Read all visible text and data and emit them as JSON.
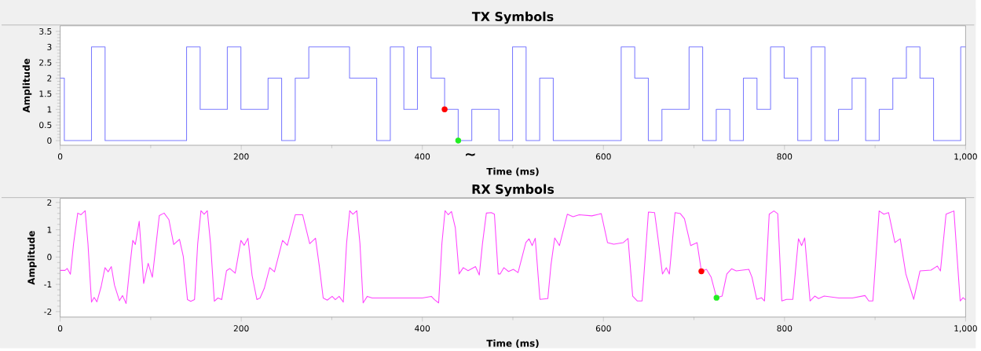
{
  "chart_data": [
    {
      "type": "step",
      "title": "TX Symbols",
      "xlabel": "Time (ms)",
      "ylabel": "Amplitude",
      "annotations": [
        "~"
      ],
      "xlim": [
        0,
        1000
      ],
      "ylim": [
        -0.15,
        3.68
      ],
      "xticks": [
        0,
        200,
        400,
        600,
        800,
        {
          "value": 1000,
          "label": "1,000"
        }
      ],
      "yticks": [
        0,
        0.5,
        1,
        1.5,
        2,
        2.5,
        3,
        3.5
      ],
      "series": [
        {
          "color": "#7b7bff",
          "x": [
            0,
            4.6,
            34.6,
            49.6,
            139.6,
            154.6,
            184.6,
            199.6,
            229.6,
            244.6,
            259.6,
            274.6,
            319.6,
            349.6,
            364.6,
            379.6,
            394.6,
            409.6,
            424.6,
            439.6,
            454.6,
            484.6,
            499.6,
            514.6,
            529.6,
            544.6,
            619.6,
            634.6,
            649.6,
            664.6,
            694.6,
            709.6,
            724.6,
            739.6,
            754.6,
            769.6,
            784.6,
            799.6,
            814.6,
            829.6,
            844.6,
            859.6,
            874.6,
            889.6,
            904.6,
            919.6,
            934.6,
            949.6,
            964.6,
            994.6,
            1000
          ],
          "values": [
            2,
            0,
            3,
            0,
            3,
            1,
            3,
            1,
            2,
            0,
            2,
            3,
            2,
            0,
            3,
            1,
            3,
            2,
            1,
            0,
            1,
            0,
            3,
            0,
            2,
            0,
            3,
            2,
            0,
            1,
            3,
            0,
            1,
            0,
            2,
            1,
            3,
            2,
            0,
            3,
            0,
            1,
            2,
            0,
            1,
            2,
            3,
            2,
            0,
            3,
            3
          ]
        },
        {
          "type": "scatter",
          "color": "#ff0000",
          "marker": "circle",
          "x": [
            424.6
          ],
          "values": [
            1
          ]
        },
        {
          "type": "scatter",
          "color": "#22ee22",
          "marker": "circle",
          "x": [
            439.6
          ],
          "values": [
            0
          ]
        }
      ]
    },
    {
      "type": "line",
      "title": "RX Symbols",
      "xlabel": "Time (ms)",
      "ylabel": "Amplitude",
      "xlim": [
        0,
        1000
      ],
      "ylim": [
        -2.2,
        2.15
      ],
      "xticks": [
        0,
        200,
        400,
        600,
        800,
        {
          "value": 1000,
          "label": "1,000"
        }
      ],
      "yticks": [
        -2,
        -1,
        0,
        1,
        2
      ],
      "series": [
        {
          "color": "#ff44ff",
          "x": [
            0,
            5.3,
            7.8,
            11.3,
            14.8,
            19.4,
            23,
            27.6,
            30.7,
            34.6,
            37.5,
            40.6,
            45.2,
            49.5,
            53,
            56.5,
            60,
            65.4,
            68.9,
            72.8,
            77,
            80.2,
            83,
            87.3,
            92.2,
            97.2,
            101.8,
            106,
            109.5,
            114.8,
            120.1,
            125.4,
            131.8,
            136,
            140.6,
            144.2,
            148.4,
            151.9,
            155.5,
            159,
            162.5,
            166.1,
            170.3,
            174.2,
            178.4,
            183.7,
            187.3,
            193.3,
            199.6,
            203.2,
            207.4,
            212,
            217.3,
            220.8,
            225.4,
            231.4,
            236.7,
            245.6,
            250.9,
            259.7,
            267.8,
            275.6,
            282,
            286.2,
            290.5,
            295,
            300.4,
            303.9,
            308.1,
            312.7,
            316.3,
            319.8,
            323.3,
            327.6,
            331.1,
            334.6,
            339.2,
            344.5,
            360,
            380,
            400,
            409.9,
            413.4,
            418,
            421.6,
            425.1,
            428.6,
            432.2,
            436.4,
            440.6,
            445.2,
            450.5,
            458.7,
            462.9,
            466.4,
            470.7,
            476.2,
            479.6,
            483.8,
            485.9,
            490,
            495.2,
            500.5,
            505.7,
            514.3,
            517.8,
            521.3,
            524.7,
            529.9,
            538.6,
            542.1,
            546.2,
            551.4,
            560.1,
            566.4,
            573.3,
            587.2,
            597.6,
            604.5,
            611.4,
            622,
            627.2,
            632.3,
            637.5,
            642.7,
            649.7,
            656.5,
            660,
            665.2,
            669.4,
            672.8,
            679.1,
            685,
            689.5,
            696.4,
            703.4,
            708.2,
            713.8,
            719,
            724.9,
            731.1,
            736.3,
            741.5,
            746.7,
            760.6,
            764.1,
            769.3,
            774.5,
            777.9,
            783.1,
            788.3,
            792.5,
            797,
            802.2,
            809.2,
            815.4,
            818.9,
            822.3,
            828.2,
            833.4,
            837.6,
            843.8,
            860,
            875,
            888.9,
            893.1,
            897.6,
            904.5,
            909.7,
            914.9,
            921.9,
            927.8,
            934,
            942.7,
            949.6,
            961.8,
            968.7,
            972.2,
            978.4,
            982.6,
            987.1,
            989.5,
            994,
            997.2,
            1000
          ],
          "values": [
            -0.49,
            -0.49,
            -0.42,
            -0.63,
            0.49,
            1.61,
            1.55,
            1.7,
            0.49,
            -1.65,
            -1.48,
            -1.64,
            -1.09,
            -0.39,
            -0.54,
            -0.35,
            -1.03,
            -1.6,
            -1.41,
            -1.7,
            -0.33,
            0.61,
            0.46,
            1.31,
            -0.97,
            -0.23,
            -0.74,
            0.49,
            1.52,
            1.61,
            1.37,
            0.46,
            0.65,
            0.02,
            -1.56,
            -1.62,
            -1.56,
            0.49,
            1.7,
            1.57,
            1.7,
            0.49,
            -1.62,
            -1.5,
            -1.56,
            -0.5,
            -0.42,
            -0.59,
            0.61,
            0.43,
            0.69,
            -0.68,
            -1.56,
            -1.5,
            -1.15,
            -0.39,
            -0.54,
            0.61,
            0.43,
            1.55,
            1.55,
            0.49,
            0.69,
            -0.33,
            -1.5,
            -1.58,
            -1.44,
            -1.56,
            -1.44,
            -1.65,
            0.49,
            1.7,
            1.57,
            1.7,
            0.49,
            -1.68,
            -1.44,
            -1.5,
            -1.5,
            -1.5,
            -1.5,
            -1.44,
            -1.56,
            -1.68,
            0.49,
            1.7,
            1.55,
            1.67,
            1.08,
            -0.62,
            -0.39,
            -0.5,
            -0.35,
            -0.66,
            0.49,
            1.61,
            1.63,
            1.57,
            -0.62,
            -0.62,
            -0.39,
            -0.53,
            -0.45,
            -0.57,
            0.53,
            0.67,
            0.42,
            0.69,
            -1.55,
            -1.52,
            -0.28,
            0.7,
            0.42,
            1.57,
            1.48,
            1.55,
            1.51,
            1.59,
            0.53,
            0.47,
            0.53,
            0.68,
            -1.43,
            -1.61,
            -1.61,
            1.65,
            1.63,
            0.76,
            -0.62,
            -0.39,
            -0.62,
            1.63,
            1.59,
            1.4,
            0.42,
            0.53,
            -0.52,
            -0.45,
            -0.74,
            -1.49,
            -1.43,
            -0.62,
            -0.43,
            -0.51,
            -0.45,
            -0.74,
            -1.55,
            -1.49,
            -1.61,
            1.57,
            1.69,
            1.59,
            -1.61,
            -1.55,
            -1.55,
            0.67,
            0.42,
            0.7,
            -1.61,
            -1.43,
            -1.52,
            -1.43,
            -1.5,
            -1.5,
            -1.41,
            -1.61,
            -1.61,
            1.69,
            1.57,
            1.63,
            0.53,
            0.67,
            -0.62,
            -1.55,
            -0.51,
            -0.48,
            -0.33,
            -0.51,
            1.57,
            1.63,
            1.69,
            0.53,
            -1.61,
            -1.49,
            -1.57
          ]
        },
        {
          "type": "scatter",
          "color": "#ff0000",
          "marker": "circle",
          "x": [
            708.2
          ],
          "values": [
            -0.52
          ]
        },
        {
          "type": "scatter",
          "color": "#22ee22",
          "marker": "circle",
          "x": [
            724.9
          ],
          "values": [
            -1.49
          ]
        }
      ]
    }
  ]
}
